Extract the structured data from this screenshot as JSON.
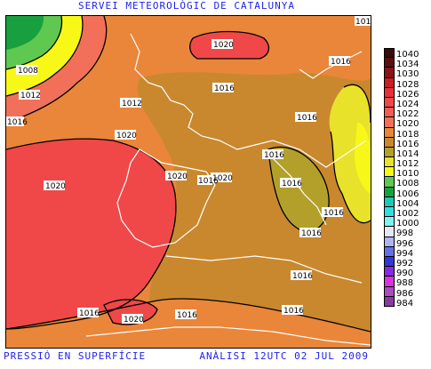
{
  "header": {
    "title": "SERVEI METEOROLÒGIC DE CATALUNYA"
  },
  "footer": {
    "left": "PRESSIÓ EN SUPERFÍCIE",
    "right": "ANÀLISI 12UTC 02 JUL 2009"
  },
  "map": {
    "isobar_labels": [
      "1008",
      "1012",
      "1016",
      "1016",
      "1016",
      "1016",
      "1016",
      "1016",
      "1016",
      "1016",
      "1016",
      "1016",
      "1016",
      "1016",
      "1016",
      "1016",
      "1020",
      "1020",
      "1020",
      "1020",
      "1020",
      "1020",
      "1012",
      "101"
    ],
    "colors": {
      "land_outline": "#ffffff",
      "isobar": "#000000"
    }
  },
  "legend": {
    "items": [
      {
        "label": "1040",
        "color": "#3a0a0a"
      },
      {
        "label": "1034",
        "color": "#5a0f10"
      },
      {
        "label": "1030",
        "color": "#8a1418"
      },
      {
        "label": "1028",
        "color": "#c91e24"
      },
      {
        "label": "1026",
        "color": "#e8303a"
      },
      {
        "label": "1024",
        "color": "#f04848"
      },
      {
        "label": "1022",
        "color": "#f25c52"
      },
      {
        "label": "1020",
        "color": "#f2705a"
      },
      {
        "label": "1018",
        "color": "#e9863a"
      },
      {
        "label": "1016",
        "color": "#c9882e"
      },
      {
        "label": "1014",
        "color": "#b2a02a"
      },
      {
        "label": "1012",
        "color": "#e8e22a"
      },
      {
        "label": "1010",
        "color": "#f8f818"
      },
      {
        "label": "1008",
        "color": "#5ec850"
      },
      {
        "label": "1006",
        "color": "#18a040"
      },
      {
        "label": "1004",
        "color": "#1cc8b8"
      },
      {
        "label": "1002",
        "color": "#30e0e0"
      },
      {
        "label": "1000",
        "color": "#7ff2f2"
      },
      {
        "label": "998",
        "color": "#e6e6f6"
      },
      {
        "label": "996",
        "color": "#b0b4f2"
      },
      {
        "label": "994",
        "color": "#6870e8"
      },
      {
        "label": "992",
        "color": "#3238d8"
      },
      {
        "label": "990",
        "color": "#8a2ae0"
      },
      {
        "label": "988",
        "color": "#d834e0"
      },
      {
        "label": "986",
        "color": "#b048c8"
      },
      {
        "label": "984",
        "color": "#8a3aa0"
      }
    ]
  }
}
